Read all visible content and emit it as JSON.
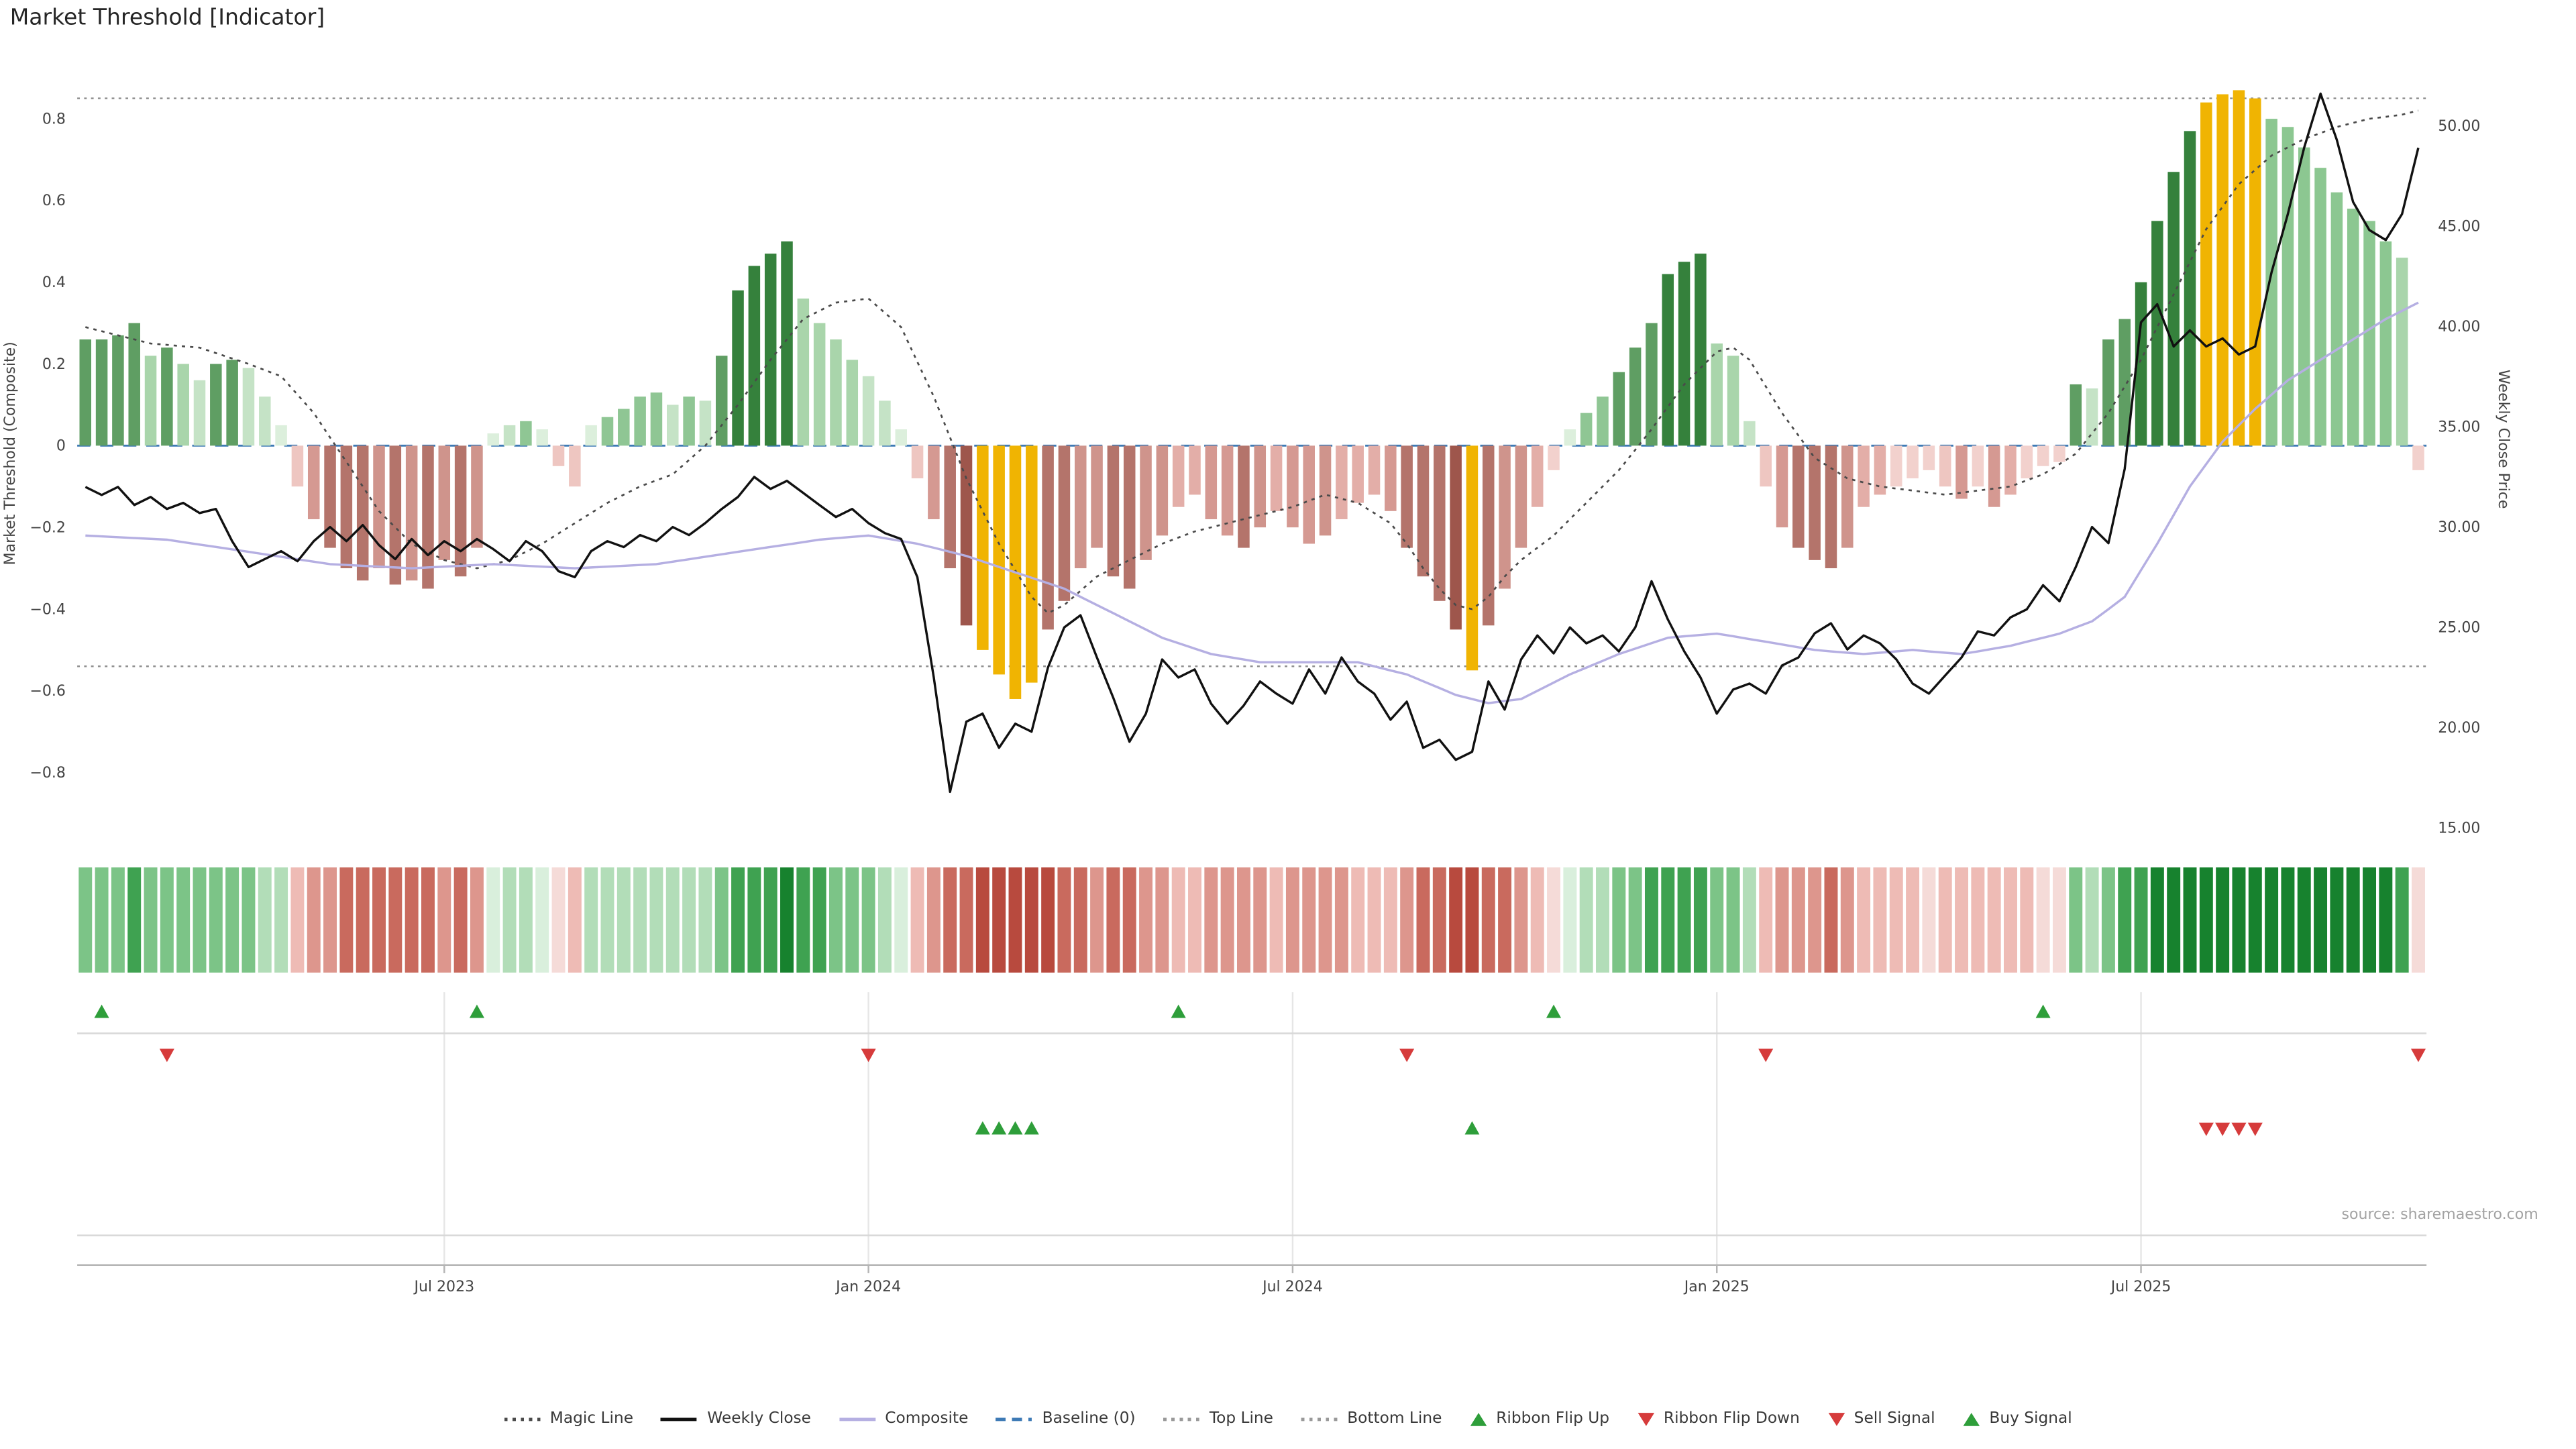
{
  "title": "Market Threshold [Indicator]",
  "source": "source: sharemaestro.com",
  "axes": {
    "left_label": "Market Threshold (Composite)",
    "right_label": "Weekly Close Price",
    "left_ticks": [
      {
        "v": 0.8,
        "label": "0.8"
      },
      {
        "v": 0.6,
        "label": "0.6"
      },
      {
        "v": 0.4,
        "label": "0.4"
      },
      {
        "v": 0.2,
        "label": "0.2"
      },
      {
        "v": 0,
        "label": "0"
      },
      {
        "v": -0.2,
        "label": "−0.2"
      },
      {
        "v": -0.4,
        "label": "−0.4"
      },
      {
        "v": -0.6,
        "label": "−0.6"
      },
      {
        "v": -0.8,
        "label": "−0.8"
      }
    ],
    "right_ticks": [
      {
        "v": 50,
        "label": "50.00"
      },
      {
        "v": 45,
        "label": "45.00"
      },
      {
        "v": 40,
        "label": "40.00"
      },
      {
        "v": 35,
        "label": "35.00"
      },
      {
        "v": 30,
        "label": "30.00"
      },
      {
        "v": 25,
        "label": "25.00"
      },
      {
        "v": 20,
        "label": "20.00"
      },
      {
        "v": 15,
        "label": "15.00"
      }
    ],
    "x_ticks": [
      {
        "week": 22,
        "label": "Jul 2023"
      },
      {
        "week": 48,
        "label": "Jan 2024"
      },
      {
        "week": 74,
        "label": "Jul 2024"
      },
      {
        "week": 100,
        "label": "Jan 2025"
      },
      {
        "week": 126,
        "label": "Jul 2025"
      }
    ]
  },
  "legend": {
    "items": [
      {
        "label": "Magic Line"
      },
      {
        "label": "Weekly Close"
      },
      {
        "label": "Composite"
      },
      {
        "label": "Baseline (0)"
      },
      {
        "label": "Top Line"
      },
      {
        "label": "Bottom Line"
      },
      {
        "label": "Ribbon Flip Up"
      },
      {
        "label": "Ribbon Flip Down"
      },
      {
        "label": "Sell Signal"
      },
      {
        "label": "Buy Signal"
      }
    ]
  },
  "colors": {
    "gold": "#f0b402",
    "buy_green": "#2e9e3a",
    "sell_red": "#d63b3b",
    "baseline_blue": "#3d7ab5",
    "composite_purple": "#b5afe2",
    "magic_gray": "#4a4a4a",
    "price_black": "#111111",
    "ref_gray": "#8f8f8f"
  },
  "chart_data": {
    "type": "bar",
    "subtype": "weekly bar histogram + price line + smoothed lines + signal ribbon",
    "n_weeks": 144,
    "ylim_left": [
      -0.98,
      0.95
    ],
    "ylim_right": [
      14.1,
      53.4
    ],
    "reference_lines": {
      "baseline": 0,
      "top_line": 0.85,
      "bottom_line": -0.54
    },
    "threshold_bars": [
      0.26,
      0.26,
      0.27,
      0.3,
      0.22,
      0.24,
      0.2,
      0.16,
      0.2,
      0.21,
      0.19,
      0.12,
      0.05,
      -0.1,
      -0.18,
      -0.25,
      -0.3,
      -0.33,
      -0.3,
      -0.34,
      -0.33,
      -0.35,
      -0.28,
      -0.32,
      -0.25,
      0.03,
      0.05,
      0.06,
      0.04,
      -0.05,
      -0.1,
      0.05,
      0.07,
      0.09,
      0.12,
      0.13,
      0.1,
      0.12,
      0.11,
      0.22,
      0.38,
      0.44,
      0.47,
      0.5,
      0.36,
      0.3,
      0.26,
      0.21,
      0.17,
      0.11,
      0.04,
      -0.08,
      -0.18,
      -0.3,
      -0.44,
      -0.5,
      -0.56,
      -0.62,
      -0.58,
      -0.45,
      -0.38,
      -0.3,
      -0.25,
      -0.32,
      -0.35,
      -0.28,
      -0.22,
      -0.15,
      -0.12,
      -0.18,
      -0.22,
      -0.25,
      -0.2,
      -0.16,
      -0.2,
      -0.24,
      -0.22,
      -0.18,
      -0.14,
      -0.12,
      -0.16,
      -0.25,
      -0.32,
      -0.38,
      -0.45,
      -0.55,
      -0.44,
      -0.35,
      -0.25,
      -0.15,
      -0.06,
      0.04,
      0.08,
      0.12,
      0.18,
      0.24,
      0.3,
      0.42,
      0.45,
      0.47,
      0.25,
      0.22,
      0.06,
      -0.1,
      -0.2,
      -0.25,
      -0.28,
      -0.3,
      -0.25,
      -0.15,
      -0.12,
      -0.1,
      -0.08,
      -0.06,
      -0.1,
      -0.13,
      -0.1,
      -0.15,
      -0.12,
      -0.08,
      -0.05,
      -0.04,
      0.15,
      0.14,
      0.26,
      0.31,
      0.4,
      0.55,
      0.67,
      0.77,
      0.84,
      0.86,
      0.87,
      0.85,
      0.8,
      0.78,
      0.73,
      0.68,
      0.62,
      0.58,
      0.55,
      0.5,
      0.46,
      -0.06
    ],
    "gold_highlight_weeks": [
      55,
      56,
      57,
      58,
      85,
      130,
      131,
      132,
      133
    ],
    "weekly_close": [
      32.0,
      31.6,
      32.0,
      31.1,
      31.5,
      30.9,
      31.2,
      30.7,
      30.9,
      29.3,
      28.0,
      28.4,
      28.8,
      28.3,
      29.3,
      30.0,
      29.3,
      30.1,
      29.1,
      28.4,
      29.4,
      28.6,
      29.3,
      28.8,
      29.4,
      28.9,
      28.3,
      29.3,
      28.8,
      27.8,
      27.5,
      28.8,
      29.3,
      29.0,
      29.6,
      29.3,
      30.0,
      29.6,
      30.2,
      30.9,
      31.5,
      32.5,
      31.9,
      32.3,
      31.7,
      31.1,
      30.5,
      30.9,
      30.2,
      29.7,
      29.4,
      27.5,
      22.5,
      16.8,
      20.3,
      20.7,
      19.0,
      20.2,
      19.8,
      23.0,
      25.0,
      25.6,
      23.5,
      21.5,
      19.3,
      20.7,
      23.4,
      22.5,
      22.9,
      21.2,
      20.2,
      21.1,
      22.3,
      21.7,
      21.2,
      22.9,
      21.7,
      23.5,
      22.3,
      21.7,
      20.4,
      21.3,
      19.0,
      19.4,
      18.4,
      18.8,
      22.3,
      20.9,
      23.4,
      24.6,
      23.7,
      25.0,
      24.2,
      24.6,
      23.8,
      25.0,
      27.3,
      25.4,
      23.8,
      22.5,
      20.7,
      21.9,
      22.2,
      21.7,
      23.1,
      23.5,
      24.7,
      25.2,
      23.9,
      24.6,
      24.2,
      23.4,
      22.2,
      21.7,
      22.6,
      23.5,
      24.8,
      24.6,
      25.5,
      25.9,
      27.1,
      26.3,
      28.0,
      30.0,
      29.2,
      32.9,
      40.2,
      41.1,
      39.0,
      39.8,
      39.0,
      39.4,
      38.6,
      39.0,
      42.7,
      45.6,
      48.9,
      51.6,
      49.3,
      46.2,
      44.8,
      44.3,
      45.6,
      48.9
    ],
    "magic_line_points": [
      [
        0,
        0.29
      ],
      [
        4,
        0.25
      ],
      [
        7,
        0.24
      ],
      [
        10,
        0.2
      ],
      [
        12,
        0.17
      ],
      [
        14,
        0.08
      ],
      [
        16,
        -0.04
      ],
      [
        18,
        -0.16
      ],
      [
        20,
        -0.24
      ],
      [
        22,
        -0.28
      ],
      [
        24,
        -0.3
      ],
      [
        26,
        -0.28
      ],
      [
        28,
        -0.24
      ],
      [
        30,
        -0.19
      ],
      [
        32,
        -0.14
      ],
      [
        34,
        -0.1
      ],
      [
        36,
        -0.07
      ],
      [
        38,
        0.0
      ],
      [
        40,
        0.1
      ],
      [
        42,
        0.21
      ],
      [
        44,
        0.31
      ],
      [
        46,
        0.35
      ],
      [
        48,
        0.36
      ],
      [
        50,
        0.29
      ],
      [
        52,
        0.12
      ],
      [
        54,
        -0.08
      ],
      [
        56,
        -0.24
      ],
      [
        58,
        -0.37
      ],
      [
        59,
        -0.41
      ],
      [
        60,
        -0.39
      ],
      [
        62,
        -0.32
      ],
      [
        64,
        -0.28
      ],
      [
        66,
        -0.24
      ],
      [
        68,
        -0.21
      ],
      [
        70,
        -0.19
      ],
      [
        72,
        -0.17
      ],
      [
        74,
        -0.15
      ],
      [
        76,
        -0.12
      ],
      [
        78,
        -0.14
      ],
      [
        80,
        -0.19
      ],
      [
        81,
        -0.24
      ],
      [
        82,
        -0.3
      ],
      [
        83,
        -0.35
      ],
      [
        84,
        -0.39
      ],
      [
        85,
        -0.4
      ],
      [
        86,
        -0.37
      ],
      [
        87,
        -0.32
      ],
      [
        88,
        -0.28
      ],
      [
        90,
        -0.22
      ],
      [
        92,
        -0.14
      ],
      [
        94,
        -0.06
      ],
      [
        96,
        0.04
      ],
      [
        98,
        0.15
      ],
      [
        100,
        0.23
      ],
      [
        101,
        0.24
      ],
      [
        102,
        0.21
      ],
      [
        104,
        0.08
      ],
      [
        106,
        -0.03
      ],
      [
        108,
        -0.08
      ],
      [
        110,
        -0.1
      ],
      [
        112,
        -0.11
      ],
      [
        114,
        -0.12
      ],
      [
        116,
        -0.11
      ],
      [
        118,
        -0.1
      ],
      [
        120,
        -0.07
      ],
      [
        122,
        -0.02
      ],
      [
        124,
        0.08
      ],
      [
        126,
        0.21
      ],
      [
        128,
        0.37
      ],
      [
        130,
        0.53
      ],
      [
        132,
        0.64
      ],
      [
        134,
        0.71
      ],
      [
        136,
        0.75
      ],
      [
        138,
        0.78
      ],
      [
        140,
        0.8
      ],
      [
        142,
        0.81
      ],
      [
        143,
        0.82
      ]
    ],
    "composite_line_points": [
      [
        0,
        -0.22
      ],
      [
        5,
        -0.23
      ],
      [
        10,
        -0.26
      ],
      [
        15,
        -0.29
      ],
      [
        20,
        -0.3
      ],
      [
        25,
        -0.29
      ],
      [
        30,
        -0.3
      ],
      [
        35,
        -0.29
      ],
      [
        40,
        -0.26
      ],
      [
        45,
        -0.23
      ],
      [
        48,
        -0.22
      ],
      [
        51,
        -0.24
      ],
      [
        54,
        -0.27
      ],
      [
        57,
        -0.31
      ],
      [
        60,
        -0.35
      ],
      [
        63,
        -0.41
      ],
      [
        66,
        -0.47
      ],
      [
        69,
        -0.51
      ],
      [
        72,
        -0.53
      ],
      [
        75,
        -0.53
      ],
      [
        78,
        -0.53
      ],
      [
        81,
        -0.56
      ],
      [
        84,
        -0.61
      ],
      [
        86,
        -0.63
      ],
      [
        88,
        -0.62
      ],
      [
        91,
        -0.56
      ],
      [
        94,
        -0.51
      ],
      [
        97,
        -0.47
      ],
      [
        100,
        -0.46
      ],
      [
        103,
        -0.48
      ],
      [
        106,
        -0.5
      ],
      [
        109,
        -0.51
      ],
      [
        112,
        -0.5
      ],
      [
        115,
        -0.51
      ],
      [
        118,
        -0.49
      ],
      [
        121,
        -0.46
      ],
      [
        123,
        -0.43
      ],
      [
        125,
        -0.37
      ],
      [
        127,
        -0.24
      ],
      [
        129,
        -0.1
      ],
      [
        131,
        0.01
      ],
      [
        133,
        0.09
      ],
      [
        135,
        0.16
      ],
      [
        137,
        0.21
      ],
      [
        139,
        0.26
      ],
      [
        141,
        0.31
      ],
      [
        143,
        0.35
      ]
    ],
    "signals": {
      "ribbon_flip_up_weeks": [
        1,
        24,
        67,
        90,
        120
      ],
      "ribbon_flip_down_weeks": [
        5,
        48,
        81,
        103,
        143
      ],
      "buy_signal_weeks": [
        55,
        56,
        57,
        58,
        85
      ],
      "sell_signal_weeks": [
        130,
        131,
        132,
        133
      ]
    }
  }
}
